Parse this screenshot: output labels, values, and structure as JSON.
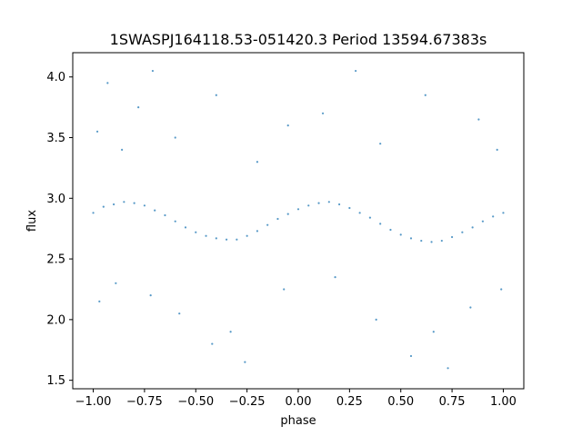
{
  "chart_data": {
    "type": "scatter",
    "title": "1SWASPJ164118.53-051420.3 Period 13594.67383s",
    "xlabel": "phase",
    "ylabel": "flux",
    "xlim": [
      -1.1,
      1.1
    ],
    "ylim": [
      1.43,
      4.2
    ],
    "grid": false,
    "point_color": "#1f77b4",
    "x_ticks": [
      {
        "value": -1.0,
        "label": "−1.00"
      },
      {
        "value": -0.75,
        "label": "−0.75"
      },
      {
        "value": -0.5,
        "label": "−0.50"
      },
      {
        "value": -0.25,
        "label": "−0.25"
      },
      {
        "value": 0.0,
        "label": "0.00"
      },
      {
        "value": 0.25,
        "label": "0.25"
      },
      {
        "value": 0.5,
        "label": "0.50"
      },
      {
        "value": 0.75,
        "label": "0.75"
      },
      {
        "value": 1.0,
        "label": "1.00"
      }
    ],
    "y_ticks": [
      {
        "value": 1.5,
        "label": "1.5"
      },
      {
        "value": 2.0,
        "label": "2.0"
      },
      {
        "value": 2.5,
        "label": "2.5"
      },
      {
        "value": 3.0,
        "label": "3.0"
      },
      {
        "value": 3.5,
        "label": "3.5"
      },
      {
        "value": 4.0,
        "label": "4.0"
      }
    ],
    "series": [
      {
        "values": [
          [
            -1.0,
            2.88
          ],
          [
            -0.95,
            2.93
          ],
          [
            -0.9,
            2.95
          ],
          [
            -0.85,
            2.97
          ],
          [
            -0.8,
            2.96
          ],
          [
            -0.75,
            2.94
          ],
          [
            -0.7,
            2.9
          ],
          [
            -0.65,
            2.86
          ],
          [
            -0.6,
            2.81
          ],
          [
            -0.55,
            2.76
          ],
          [
            -0.5,
            2.72
          ],
          [
            -0.45,
            2.69
          ],
          [
            -0.4,
            2.67
          ],
          [
            -0.35,
            2.66
          ],
          [
            -0.3,
            2.66
          ],
          [
            -0.25,
            2.69
          ],
          [
            -0.2,
            2.73
          ],
          [
            -0.15,
            2.78
          ],
          [
            -0.1,
            2.83
          ],
          [
            -0.05,
            2.87
          ],
          [
            0.0,
            2.91
          ],
          [
            0.05,
            2.94
          ],
          [
            0.1,
            2.96
          ],
          [
            0.15,
            2.97
          ],
          [
            0.2,
            2.95
          ],
          [
            0.25,
            2.92
          ],
          [
            0.3,
            2.88
          ],
          [
            0.35,
            2.84
          ],
          [
            0.4,
            2.79
          ],
          [
            0.45,
            2.74
          ],
          [
            0.5,
            2.7
          ],
          [
            0.55,
            2.67
          ],
          [
            0.6,
            2.65
          ],
          [
            0.65,
            2.64
          ],
          [
            0.7,
            2.65
          ],
          [
            0.75,
            2.68
          ],
          [
            0.8,
            2.72
          ],
          [
            0.85,
            2.76
          ],
          [
            0.9,
            2.81
          ],
          [
            0.95,
            2.85
          ],
          [
            1.0,
            2.88
          ],
          [
            -0.98,
            3.55
          ],
          [
            -0.93,
            3.95
          ],
          [
            -0.86,
            3.4
          ],
          [
            -0.78,
            3.75
          ],
          [
            -0.71,
            4.05
          ],
          [
            -0.6,
            3.5
          ],
          [
            -0.4,
            3.85
          ],
          [
            -0.2,
            3.3
          ],
          [
            -0.05,
            3.6
          ],
          [
            0.12,
            3.7
          ],
          [
            0.28,
            4.05
          ],
          [
            0.4,
            3.45
          ],
          [
            0.62,
            3.85
          ],
          [
            0.88,
            3.65
          ],
          [
            0.97,
            3.4
          ],
          [
            -0.97,
            2.15
          ],
          [
            -0.89,
            2.3
          ],
          [
            -0.72,
            2.2
          ],
          [
            -0.58,
            2.05
          ],
          [
            -0.42,
            1.8
          ],
          [
            -0.33,
            1.9
          ],
          [
            -0.26,
            1.65
          ],
          [
            -0.07,
            2.25
          ],
          [
            0.18,
            2.35
          ],
          [
            0.38,
            2.0
          ],
          [
            0.55,
            1.7
          ],
          [
            0.66,
            1.9
          ],
          [
            0.73,
            1.6
          ],
          [
            0.84,
            2.1
          ],
          [
            0.99,
            2.25
          ]
        ]
      }
    ]
  }
}
